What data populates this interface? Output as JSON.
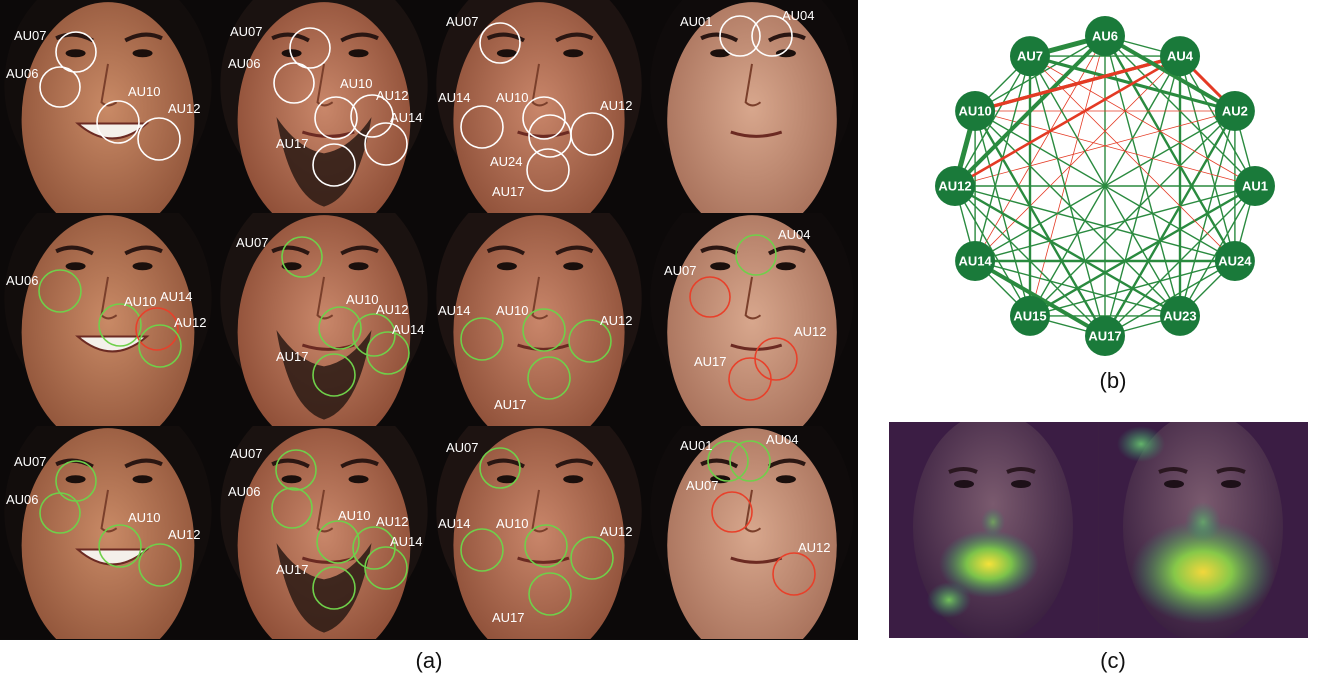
{
  "captions": {
    "a": "(a)",
    "b": "(b)",
    "c": "(c)"
  },
  "colors": {
    "white": "#ffffff",
    "green": "#6fd04a",
    "red": "#e8402a",
    "node": "#1a7a3a",
    "edge_green": "#2a8a3f",
    "edge_red": "#e43a24"
  },
  "grid": {
    "rows": [
      {
        "ring_color": "white",
        "tiles": [
          {
            "face": 0,
            "labels": [
              "AU07",
              "AU06",
              "AU10",
              "AU12"
            ]
          },
          {
            "face": 1,
            "labels": [
              "AU07",
              "AU06",
              "AU10",
              "AU12",
              "AU14",
              "AU17"
            ]
          },
          {
            "face": 2,
            "labels": [
              "AU07",
              "AU14",
              "AU10",
              "AU12",
              "AU24",
              "AU17"
            ]
          },
          {
            "face": 3,
            "labels": [
              "AU01",
              "AU04"
            ]
          }
        ]
      },
      {
        "ring_color": "mixed",
        "tiles": [
          {
            "face": 0,
            "labels": [
              "AU06",
              "AU10",
              "AU14",
              "AU12"
            ]
          },
          {
            "face": 1,
            "labels": [
              "AU07",
              "AU10",
              "AU12",
              "AU14",
              "AU17"
            ]
          },
          {
            "face": 2,
            "labels": [
              "AU14",
              "AU10",
              "AU12",
              "AU17"
            ]
          },
          {
            "face": 3,
            "labels": [
              "AU04",
              "AU07",
              "AU12",
              "AU17"
            ]
          }
        ]
      },
      {
        "ring_color": "mixed",
        "tiles": [
          {
            "face": 0,
            "labels": [
              "AU07",
              "AU06",
              "AU10",
              "AU12"
            ]
          },
          {
            "face": 1,
            "labels": [
              "AU07",
              "AU06",
              "AU10",
              "AU12",
              "AU14",
              "AU17"
            ]
          },
          {
            "face": 2,
            "labels": [
              "AU07",
              "AU14",
              "AU10",
              "AU12",
              "AU17"
            ]
          },
          {
            "face": 3,
            "labels": [
              "AU01",
              "AU04",
              "AU07",
              "AU12"
            ]
          }
        ]
      }
    ]
  },
  "graph": {
    "nodes": [
      "AU6",
      "AU4",
      "AU2",
      "AU1",
      "AU24",
      "AU23",
      "AU17",
      "AU15",
      "AU14",
      "AU12",
      "AU10",
      "AU7"
    ]
  }
}
